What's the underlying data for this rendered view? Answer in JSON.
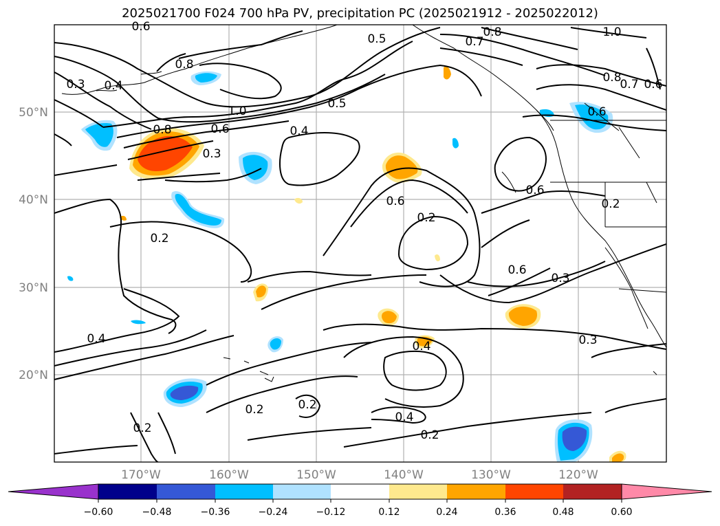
{
  "title": "2025021700 F024 700 hPa PV, precipitation PC (2025021912 - 2025022012)",
  "map": {
    "lat_labels": [
      "50°N",
      "40°N",
      "30°N",
      "20°N"
    ],
    "lon_labels": [
      "170°W",
      "160°W",
      "150°W",
      "140°W",
      "130°W",
      "120°W"
    ],
    "contour_labels": [
      "0.5",
      "0.8",
      "1.0",
      "0.3",
      "0.4",
      "0.8",
      "1.0",
      "0.5",
      "0.6",
      "0.8",
      "0.3",
      "0.4",
      "0.6",
      "0.2",
      "0.6",
      "0.6",
      "0.2",
      "0.3",
      "0.4",
      "0.4",
      "0.2",
      "0.2",
      "0.4",
      "0.2",
      "0.2",
      "0.3",
      "0.8",
      "0.7",
      "0.6",
      "0.6",
      "0.2",
      "0.7",
      "0.6"
    ]
  },
  "colorbar": {
    "tick_labels": [
      "−0.60",
      "−0.48",
      "−0.36",
      "−0.24",
      "−0.12",
      "0.12",
      "0.24",
      "0.36",
      "0.48",
      "0.60"
    ],
    "colors": [
      "#9932cc",
      "#8b2fc9",
      "#00008b",
      "#3558d6",
      "#00bfff",
      "#b0e2ff",
      "#ffffff",
      "#fee98e",
      "#ffa500",
      "#ff4500",
      "#b22222",
      "#ff89a8"
    ]
  }
}
